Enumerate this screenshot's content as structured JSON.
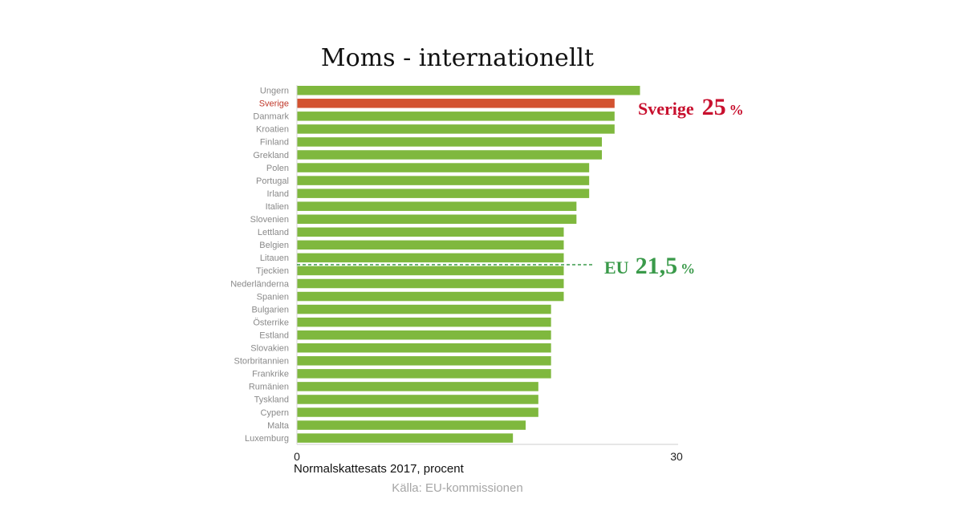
{
  "chart_data": {
    "type": "bar",
    "orientation": "horizontal",
    "title": "Moms - internationellt",
    "xlabel": "Normalskattesats 2017, procent",
    "source": "Källa: EU-kommissionen",
    "xlim": [
      0,
      30
    ],
    "xticks": [
      "0",
      "30"
    ],
    "categories": [
      "Ungern",
      "Sverige",
      "Danmark",
      "Kroatien",
      "Finland",
      "Grekland",
      "Polen",
      "Portugal",
      "Irland",
      "Italien",
      "Slovenien",
      "Lettland",
      "Belgien",
      "Litauen",
      "Tjeckien",
      "Nederländerna",
      "Spanien",
      "Bulgarien",
      "Österrike",
      "Estland",
      "Slovakien",
      "Storbritannien",
      "Frankrike",
      "Rumänien",
      "Tyskland",
      "Cypern",
      "Malta",
      "Luxemburg"
    ],
    "values": [
      27,
      25,
      25,
      25,
      24,
      24,
      23,
      23,
      23,
      22,
      22,
      21,
      21,
      21,
      21,
      21,
      21,
      20,
      20,
      20,
      20,
      20,
      20,
      19,
      19,
      19,
      18,
      17
    ],
    "highlight": "Sverige",
    "colors": {
      "bar": "#7fb83e",
      "highlight": "#d35230",
      "sverige_text": "#c8102e",
      "eu_text": "#3a9a4a"
    },
    "annotations": {
      "sverige": {
        "label": "Sverige",
        "value": "25",
        "unit": "%"
      },
      "eu": {
        "label": "EU",
        "value": "21,5",
        "unit": "%",
        "x": 21.5
      }
    }
  }
}
